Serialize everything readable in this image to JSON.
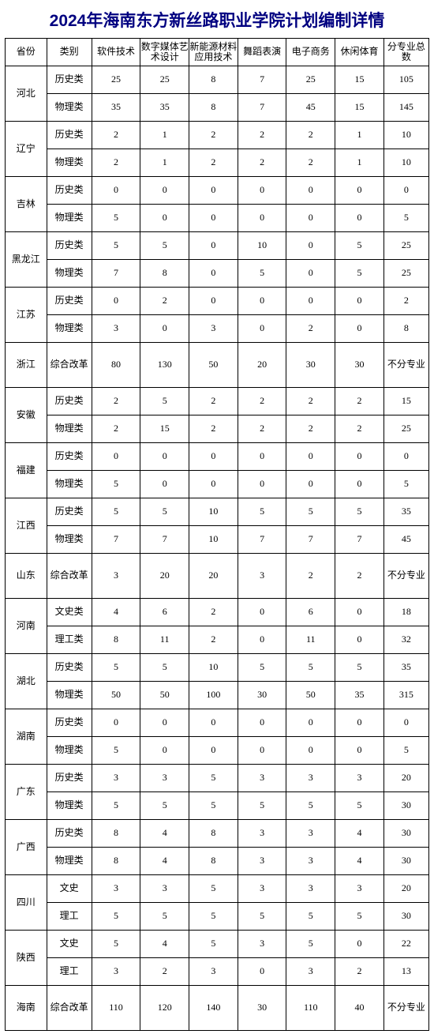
{
  "title": "2024年海南东方新丝路职业学院计划编制详情",
  "headers": {
    "province": "省份",
    "category": "类别",
    "m1": "软件技术",
    "m2": "数字媒体艺术设计",
    "m3": "新能源材料应用技术",
    "m4": "舞蹈表演",
    "m5": "电子商务",
    "m6": "休闲体育",
    "total": "分专业总数"
  },
  "table": {
    "border_color": "#000000",
    "title_color": "#000080",
    "font_size_body": 12,
    "font_size_title": 21
  },
  "provinces": [
    {
      "name": "河北",
      "tall": false,
      "rows": [
        {
          "cat": "历史类",
          "v": [
            25,
            25,
            8,
            7,
            25,
            15
          ],
          "t": "105"
        },
        {
          "cat": "物理类",
          "v": [
            35,
            35,
            8,
            7,
            45,
            15
          ],
          "t": "145"
        }
      ]
    },
    {
      "name": "辽宁",
      "tall": false,
      "rows": [
        {
          "cat": "历史类",
          "v": [
            2,
            1,
            2,
            2,
            2,
            1
          ],
          "t": "10"
        },
        {
          "cat": "物理类",
          "v": [
            2,
            1,
            2,
            2,
            2,
            1
          ],
          "t": "10"
        }
      ]
    },
    {
      "name": "吉林",
      "tall": false,
      "rows": [
        {
          "cat": "历史类",
          "v": [
            0,
            0,
            0,
            0,
            0,
            0
          ],
          "t": "0"
        },
        {
          "cat": "物理类",
          "v": [
            5,
            0,
            0,
            0,
            0,
            0
          ],
          "t": "5"
        }
      ]
    },
    {
      "name": "黑龙江",
      "tall": false,
      "rows": [
        {
          "cat": "历史类",
          "v": [
            5,
            5,
            0,
            10,
            0,
            5
          ],
          "t": "25"
        },
        {
          "cat": "物理类",
          "v": [
            7,
            8,
            0,
            5,
            0,
            5
          ],
          "t": "25"
        }
      ]
    },
    {
      "name": "江苏",
      "tall": false,
      "rows": [
        {
          "cat": "历史类",
          "v": [
            0,
            2,
            0,
            0,
            0,
            0
          ],
          "t": "2"
        },
        {
          "cat": "物理类",
          "v": [
            3,
            0,
            3,
            0,
            2,
            0
          ],
          "t": "8"
        }
      ]
    },
    {
      "name": "浙江",
      "tall": true,
      "rows": [
        {
          "cat": "综合改革",
          "v": [
            80,
            130,
            50,
            20,
            30,
            30
          ],
          "t": "不分专业"
        }
      ]
    },
    {
      "name": "安徽",
      "tall": false,
      "rows": [
        {
          "cat": "历史类",
          "v": [
            2,
            5,
            2,
            2,
            2,
            2
          ],
          "t": "15"
        },
        {
          "cat": "物理类",
          "v": [
            2,
            15,
            2,
            2,
            2,
            2
          ],
          "t": "25"
        }
      ]
    },
    {
      "name": "福建",
      "tall": false,
      "rows": [
        {
          "cat": "历史类",
          "v": [
            0,
            0,
            0,
            0,
            0,
            0
          ],
          "t": "0"
        },
        {
          "cat": "物理类",
          "v": [
            5,
            0,
            0,
            0,
            0,
            0
          ],
          "t": "5"
        }
      ]
    },
    {
      "name": "江西",
      "tall": false,
      "rows": [
        {
          "cat": "历史类",
          "v": [
            5,
            5,
            10,
            5,
            5,
            5
          ],
          "t": "35"
        },
        {
          "cat": "物理类",
          "v": [
            7,
            7,
            10,
            7,
            7,
            7
          ],
          "t": "45"
        }
      ]
    },
    {
      "name": "山东",
      "tall": true,
      "rows": [
        {
          "cat": "综合改革",
          "v": [
            3,
            20,
            20,
            3,
            2,
            2
          ],
          "t": "不分专业"
        }
      ]
    },
    {
      "name": "河南",
      "tall": false,
      "rows": [
        {
          "cat": "文史类",
          "v": [
            4,
            6,
            2,
            0,
            6,
            0
          ],
          "t": "18"
        },
        {
          "cat": "理工类",
          "v": [
            8,
            11,
            2,
            0,
            11,
            0
          ],
          "t": "32"
        }
      ]
    },
    {
      "name": "湖北",
      "tall": false,
      "rows": [
        {
          "cat": "历史类",
          "v": [
            5,
            5,
            10,
            5,
            5,
            5
          ],
          "t": "35"
        },
        {
          "cat": "物理类",
          "v": [
            50,
            50,
            100,
            30,
            50,
            35
          ],
          "t": "315"
        }
      ]
    },
    {
      "name": "湖南",
      "tall": false,
      "rows": [
        {
          "cat": "历史类",
          "v": [
            0,
            0,
            0,
            0,
            0,
            0
          ],
          "t": "0"
        },
        {
          "cat": "物理类",
          "v": [
            5,
            0,
            0,
            0,
            0,
            0
          ],
          "t": "5"
        }
      ]
    },
    {
      "name": "广东",
      "tall": false,
      "rows": [
        {
          "cat": "历史类",
          "v": [
            3,
            3,
            5,
            3,
            3,
            3
          ],
          "t": "20"
        },
        {
          "cat": "物理类",
          "v": [
            5,
            5,
            5,
            5,
            5,
            5
          ],
          "t": "30"
        }
      ]
    },
    {
      "name": "广西",
      "tall": false,
      "rows": [
        {
          "cat": "历史类",
          "v": [
            8,
            4,
            8,
            3,
            3,
            4
          ],
          "t": "30"
        },
        {
          "cat": "物理类",
          "v": [
            8,
            4,
            8,
            3,
            3,
            4
          ],
          "t": "30"
        }
      ]
    },
    {
      "name": "四川",
      "tall": false,
      "rows": [
        {
          "cat": "文史",
          "v": [
            3,
            3,
            5,
            3,
            3,
            3
          ],
          "t": "20"
        },
        {
          "cat": "理工",
          "v": [
            5,
            5,
            5,
            5,
            5,
            5
          ],
          "t": "30"
        }
      ]
    },
    {
      "name": "陕西",
      "tall": false,
      "rows": [
        {
          "cat": "文史",
          "v": [
            5,
            4,
            5,
            3,
            5,
            0
          ],
          "t": "22"
        },
        {
          "cat": "理工",
          "v": [
            3,
            2,
            3,
            0,
            3,
            2
          ],
          "t": "13"
        }
      ]
    },
    {
      "name": "海南",
      "tall": true,
      "rows": [
        {
          "cat": "综合改革",
          "v": [
            110,
            120,
            140,
            30,
            110,
            40
          ],
          "t": "不分专业"
        }
      ]
    }
  ]
}
